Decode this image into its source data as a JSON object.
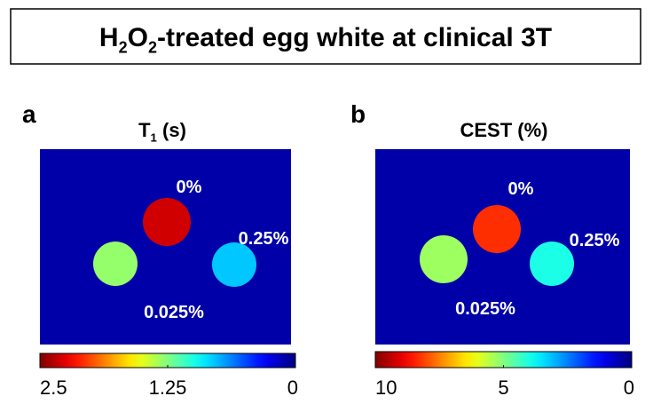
{
  "header": {
    "title": [
      {
        "text": "H"
      },
      {
        "text": "2",
        "sub": true
      },
      {
        "text": "O"
      },
      {
        "text": "2",
        "sub": true
      },
      {
        "text": "-treated egg white at clinical 3T"
      }
    ]
  },
  "panels": [
    {
      "label": "a",
      "title": [
        {
          "text": "T"
        },
        {
          "text": "1",
          "sub": true
        },
        {
          "text": " (s)"
        }
      ],
      "phantoms": [
        {
          "label": "0%",
          "value": 2.3
        },
        {
          "label": "0.025%",
          "value": 1.3
        },
        {
          "label": "0.25%",
          "value": 0.8
        }
      ],
      "background": 0.1,
      "colorbar": {
        "lim": [
          2.5,
          0
        ],
        "ticks": [
          2.5,
          1.25,
          0
        ]
      }
    },
    {
      "label": "b",
      "title": [
        {
          "text": "CEST (%)"
        }
      ],
      "phantoms": [
        {
          "label": "0%",
          "value": 8.3
        },
        {
          "label": "0.025%",
          "value": 5.3
        },
        {
          "label": "0.25%",
          "value": 4
        }
      ],
      "background": 0.4,
      "colorbar": {
        "lim": [
          10,
          0
        ],
        "ticks": [
          10,
          5,
          0
        ]
      }
    }
  ]
}
